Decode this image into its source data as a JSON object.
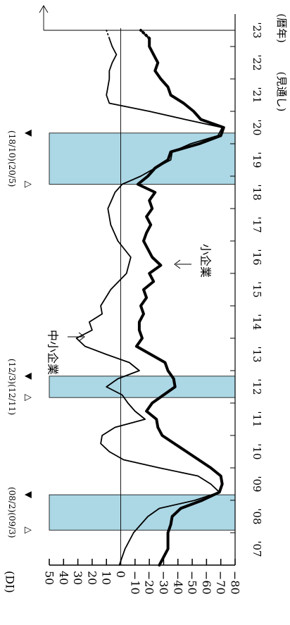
{
  "chart_data": {
    "type": "line",
    "orientation": "rotated-90-clockwise",
    "ylabel": "(DI)",
    "xlabel": "(暦年)",
    "forecast_label": "(見通し)",
    "ylim": [
      -80,
      50
    ],
    "yticks": [
      50,
      40,
      30,
      20,
      10,
      0,
      -10,
      -20,
      -30,
      -40,
      -50,
      -60,
      -70,
      -80
    ],
    "xlim": [
      2007,
      2024
    ],
    "xticks": [
      {
        "x": 2007,
        "label": "'07"
      },
      {
        "x": 2008,
        "label": "'08"
      },
      {
        "x": 2009,
        "label": "'09"
      },
      {
        "x": 2010,
        "label": "'10"
      },
      {
        "x": 2011,
        "label": "'11"
      },
      {
        "x": 2012,
        "label": "'12"
      },
      {
        "x": 2013,
        "label": "'13"
      },
      {
        "x": 2014,
        "label": "'14"
      },
      {
        "x": 2015,
        "label": "'15"
      },
      {
        "x": 2016,
        "label": "'16"
      },
      {
        "x": 2017,
        "label": "'17"
      },
      {
        "x": 2018,
        "label": "'18"
      },
      {
        "x": 2019,
        "label": "'19"
      },
      {
        "x": 2020,
        "label": "'20"
      },
      {
        "x": 2021,
        "label": "'21"
      },
      {
        "x": 2022,
        "label": "'22"
      },
      {
        "x": 2023,
        "label": "'23"
      }
    ],
    "recessions": [
      {
        "start": 2008.08,
        "end": 2009.17,
        "peak_label": "(08/2)",
        "trough_label": "(09/3)"
      },
      {
        "start": 2012.17,
        "end": 2012.83,
        "peak_label": "(12/3)",
        "trough_label": "(12/11)"
      },
      {
        "start": 2018.75,
        "end": 2020.33,
        "peak_label": "(18/10)",
        "trough_label": "(20/5)"
      }
    ],
    "peak_symbol": "△",
    "trough_symbol": "▼",
    "series": [
      {
        "name": "中小企業",
        "style": "thin",
        "values": [
          [
            2007.0,
            1
          ],
          [
            2007.5,
            -3
          ],
          [
            2008.0,
            -9
          ],
          [
            2008.5,
            -19
          ],
          [
            2008.75,
            -27
          ],
          [
            2009.0,
            -52
          ],
          [
            2009.25,
            -69
          ],
          [
            2009.5,
            -63
          ],
          [
            2009.75,
            -54
          ],
          [
            2010.0,
            -27
          ],
          [
            2010.25,
            -2
          ],
          [
            2010.5,
            8
          ],
          [
            2010.75,
            14
          ],
          [
            2011.0,
            13
          ],
          [
            2011.25,
            4
          ],
          [
            2011.5,
            -17
          ],
          [
            2011.75,
            -10
          ],
          [
            2012.0,
            -5
          ],
          [
            2012.25,
            -1
          ],
          [
            2012.5,
            10
          ],
          [
            2012.75,
            2
          ],
          [
            2013.0,
            -13
          ],
          [
            2013.25,
            -6
          ],
          [
            2013.5,
            10
          ],
          [
            2013.75,
            25
          ],
          [
            2014.0,
            31
          ],
          [
            2014.25,
            20
          ],
          [
            2014.5,
            22
          ],
          [
            2014.75,
            13
          ],
          [
            2015.0,
            14
          ],
          [
            2015.5,
            7
          ],
          [
            2016.0,
            -4
          ],
          [
            2016.5,
            -7
          ],
          [
            2017.0,
            2
          ],
          [
            2017.5,
            7
          ],
          [
            2018.0,
            9
          ],
          [
            2018.5,
            4
          ],
          [
            2018.75,
            -1
          ],
          [
            2019.0,
            -14
          ],
          [
            2019.25,
            -24
          ],
          [
            2019.5,
            -35
          ],
          [
            2019.75,
            -36
          ],
          [
            2020.0,
            -49
          ],
          [
            2020.25,
            -68
          ],
          [
            2020.5,
            -71
          ],
          [
            2020.75,
            -45
          ],
          [
            2021.0,
            -20
          ],
          [
            2021.25,
            8
          ],
          [
            2021.5,
            10
          ],
          [
            2021.75,
            9
          ],
          [
            2022.0,
            8
          ],
          [
            2022.25,
            8
          ],
          [
            2022.5,
            6
          ],
          [
            2022.75,
            3
          ],
          [
            2023.0,
            6
          ],
          [
            2023.25,
            8
          ]
        ],
        "forecast": [
          [
            2023.25,
            8
          ],
          [
            2023.5,
            10
          ]
        ]
      },
      {
        "name": "小企業",
        "style": "thick",
        "values": [
          [
            2007.0,
            -27
          ],
          [
            2007.5,
            -33
          ],
          [
            2008.0,
            -33
          ],
          [
            2008.25,
            -35
          ],
          [
            2008.5,
            -36
          ],
          [
            2008.75,
            -42
          ],
          [
            2009.0,
            -57
          ],
          [
            2009.25,
            -69
          ],
          [
            2009.5,
            -71
          ],
          [
            2009.75,
            -70
          ],
          [
            2010.0,
            -63
          ],
          [
            2010.5,
            -46
          ],
          [
            2011.0,
            -29
          ],
          [
            2011.25,
            -26
          ],
          [
            2011.5,
            -25
          ],
          [
            2011.75,
            -18
          ],
          [
            2012.0,
            -22
          ],
          [
            2012.5,
            -38
          ],
          [
            2012.75,
            -37
          ],
          [
            2013.0,
            -33
          ],
          [
            2013.25,
            -31
          ],
          [
            2013.5,
            -21
          ],
          [
            2013.75,
            -11
          ],
          [
            2014.0,
            -15
          ],
          [
            2014.25,
            -13
          ],
          [
            2014.5,
            -13
          ],
          [
            2014.75,
            -16
          ],
          [
            2015.0,
            -14
          ],
          [
            2015.25,
            -18
          ],
          [
            2015.5,
            -16
          ],
          [
            2015.75,
            -23
          ],
          [
            2016.0,
            -20
          ],
          [
            2016.25,
            -28
          ],
          [
            2016.5,
            -22
          ],
          [
            2016.75,
            -19
          ],
          [
            2017.0,
            -16
          ],
          [
            2017.25,
            -18
          ],
          [
            2017.5,
            -21
          ],
          [
            2017.75,
            -18
          ],
          [
            2018.0,
            -22
          ],
          [
            2018.25,
            -20
          ],
          [
            2018.5,
            -24
          ],
          [
            2018.75,
            -12
          ],
          [
            2019.0,
            -19
          ],
          [
            2019.25,
            -24
          ],
          [
            2019.5,
            -33
          ],
          [
            2019.75,
            -35
          ],
          [
            2020.0,
            -55
          ],
          [
            2020.25,
            -70
          ],
          [
            2020.5,
            -72
          ],
          [
            2020.75,
            -56
          ],
          [
            2021.0,
            -51
          ],
          [
            2021.25,
            -44
          ],
          [
            2021.5,
            -35
          ],
          [
            2021.75,
            -33
          ],
          [
            2022.0,
            -28
          ],
          [
            2022.25,
            -24
          ],
          [
            2022.5,
            -26
          ],
          [
            2022.75,
            -23
          ],
          [
            2023.0,
            -20
          ],
          [
            2023.25,
            -20
          ]
        ],
        "forecast": [
          [
            2023.25,
            -20
          ],
          [
            2023.5,
            -14
          ]
        ]
      }
    ]
  }
}
